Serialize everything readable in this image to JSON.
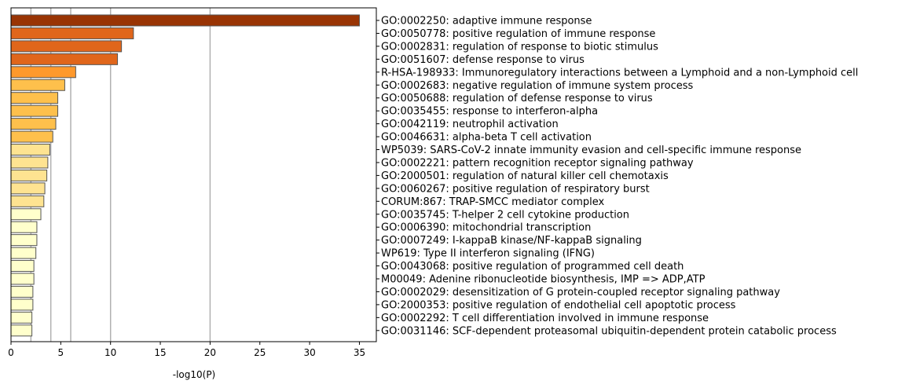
{
  "chart_data": {
    "type": "bar",
    "orientation": "horizontal",
    "xlabel": "-log10(P)",
    "ylabel": "",
    "xlim": [
      0,
      36.7
    ],
    "xticks": [
      0,
      5,
      10,
      15,
      20,
      25,
      30,
      35
    ],
    "vertical_reference_lines": [
      2,
      4,
      6,
      10,
      20
    ],
    "grid": false,
    "legend": "none",
    "bar_edge_color": "#555555",
    "reference_line_color": "#b0b0b0",
    "categories": [
      "GO:0002250: adaptive immune response",
      "GO:0050778: positive regulation of immune response",
      "GO:0002831: regulation of response to biotic stimulus",
      "GO:0051607: defense response to virus",
      "R-HSA-198933: Immunoregulatory interactions between a Lymphoid and a non-Lymphoid cell",
      "GO:0002683: negative regulation of immune system process",
      "GO:0050688: regulation of defense response to virus",
      "GO:0035455: response to interferon-alpha",
      "GO:0042119: neutrophil activation",
      "GO:0046631: alpha-beta T cell activation",
      "WP5039: SARS-CoV-2 innate immunity evasion and cell-specific immune response",
      "GO:0002221: pattern recognition receptor signaling pathway",
      "GO:2000501: regulation of natural killer cell chemotaxis",
      "GO:0060267: positive regulation of respiratory burst",
      "CORUM:867: TRAP-SMCC mediator complex",
      "GO:0035745: T-helper 2 cell cytokine production",
      "GO:0006390: mitochondrial transcription",
      "GO:0007249: I-kappaB kinase/NF-kappaB signaling",
      "WP619: Type II interferon signaling (IFNG)",
      "GO:0043068: positive regulation of programmed cell death",
      "M00049: Adenine ribonucleotide biosynthesis, IMP => ADP,ATP",
      "GO:0002029: desensitization of G protein-coupled receptor signaling pathway",
      "GO:2000353: positive regulation of endothelial cell apoptotic process",
      "GO:0002292: T cell differentiation involved in immune response",
      "GO:0031146: SCF-dependent proteasomal ubiquitin-dependent protein catabolic process"
    ],
    "values": [
      35.0,
      12.3,
      11.1,
      10.7,
      6.5,
      5.4,
      4.7,
      4.7,
      4.5,
      4.2,
      3.9,
      3.7,
      3.6,
      3.4,
      3.3,
      3.0,
      2.6,
      2.6,
      2.5,
      2.3,
      2.3,
      2.2,
      2.2,
      2.1,
      2.1
    ],
    "colors": [
      "#993404",
      "#e0661b",
      "#e0661b",
      "#e0661b",
      "#fe992c",
      "#fec04c",
      "#fec04c",
      "#fec04c",
      "#fec04c",
      "#fec04c",
      "#fee391",
      "#fee391",
      "#fee391",
      "#fee391",
      "#fee391",
      "#ffffcc",
      "#ffffcc",
      "#ffffcc",
      "#ffffcc",
      "#ffffcc",
      "#ffffcc",
      "#ffffcc",
      "#ffffcc",
      "#ffffcc",
      "#ffffcc"
    ]
  }
}
